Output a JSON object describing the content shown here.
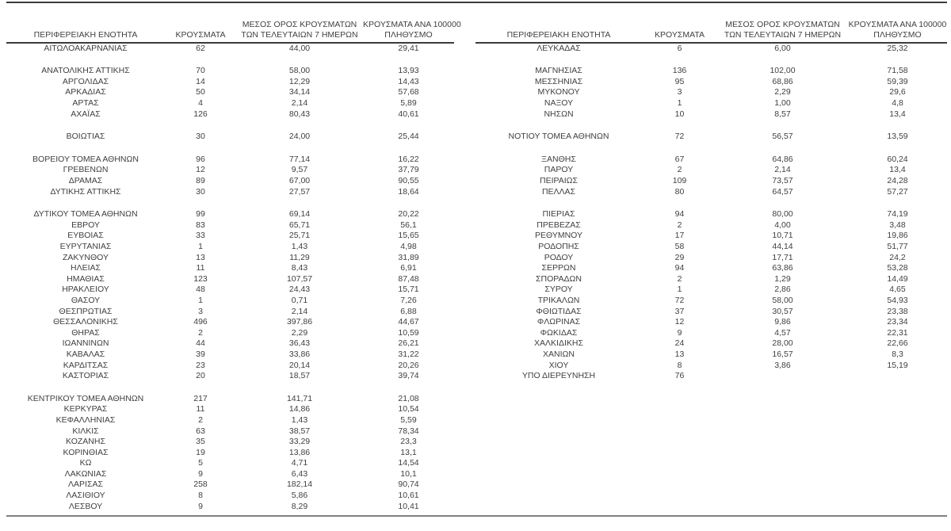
{
  "colors": {
    "text": "#3f3f3f",
    "line-dark": "#3c3c3c",
    "line-light": "#808080",
    "bg": "#ffffff"
  },
  "table": {
    "columns": [
      {
        "line1": "ΠΕΡΙΦΕΡΕΙΑΚΗ ΕΝΟΤΗΤΑ",
        "line2": ""
      },
      {
        "line1": "ΚΡΟΥΣΜΑΤΑ",
        "line2": ""
      },
      {
        "line1": "ΜΕΣΟΣ ΟΡΟΣ ΚΡΟΥΣΜΑΤΩΝ",
        "line2": "ΤΩΝ ΤΕΛΕΥΤΑΙΩΝ 7 ΗΜΕΡΩΝ"
      },
      {
        "line1": "ΚΡΟΥΣΜΑΤΑ ΑΝΑ 100000",
        "line2": "ΠΛΗΘΥΣΜΟ"
      }
    ],
    "left_rows": [
      [
        "ΑΙΤΩΛΟΑΚΑΡΝΑΝΙΑΣ",
        "62",
        "44,00",
        "29,41"
      ],
      null,
      [
        "ΑΝΑΤΟΛΙΚΗΣ ΑΤΤΙΚΗΣ",
        "70",
        "58,00",
        "13,93"
      ],
      [
        "ΑΡΓΟΛΙΔΑΣ",
        "14",
        "12,29",
        "14,43"
      ],
      [
        "ΑΡΚΑΔΙΑΣ",
        "50",
        "34,14",
        "57,68"
      ],
      [
        "ΑΡΤΑΣ",
        "4",
        "2,14",
        "5,89"
      ],
      [
        "ΑΧΑΪΑΣ",
        "126",
        "80,43",
        "40,61"
      ],
      null,
      [
        "ΒΟΙΩΤΙΑΣ",
        "30",
        "24,00",
        "25,44"
      ],
      null,
      [
        "ΒΟΡΕΙΟΥ ΤΟΜΕΑ ΑΘΗΝΩΝ",
        "96",
        "77,14",
        "16,22"
      ],
      [
        "ΓΡΕΒΕΝΩΝ",
        "12",
        "9,57",
        "37,79"
      ],
      [
        "ΔΡΑΜΑΣ",
        "89",
        "67,00",
        "90,55"
      ],
      [
        "ΔΥΤΙΚΗΣ ΑΤΤΙΚΗΣ",
        "30",
        "27,57",
        "18,64"
      ],
      null,
      [
        "ΔΥΤΙΚΟΥ ΤΟΜΕΑ ΑΘΗΝΩΝ",
        "99",
        "69,14",
        "20,22"
      ],
      [
        "ΕΒΡΟΥ",
        "83",
        "65,71",
        "56,1"
      ],
      [
        "ΕΥΒΟΙΑΣ",
        "33",
        "25,71",
        "15,65"
      ],
      [
        "ΕΥΡΥΤΑΝΙΑΣ",
        "1",
        "1,43",
        "4,98"
      ],
      [
        "ΖΑΚΥΝΘΟΥ",
        "13",
        "11,29",
        "31,89"
      ],
      [
        "ΗΛΕΙΑΣ",
        "11",
        "8,43",
        "6,91"
      ],
      [
        "ΗΜΑΘΙΑΣ",
        "123",
        "107,57",
        "87,48"
      ],
      [
        "ΗΡΑΚΛΕΙΟΥ",
        "48",
        "24,43",
        "15,71"
      ],
      [
        "ΘΑΣΟΥ",
        "1",
        "0,71",
        "7,26"
      ],
      [
        "ΘΕΣΠΡΩΤΙΑΣ",
        "3",
        "2,14",
        "6,88"
      ],
      [
        "ΘΕΣΣΑΛΟΝΙΚΗΣ",
        "496",
        "397,86",
        "44,67"
      ],
      [
        "ΘΗΡΑΣ",
        "2",
        "2,29",
        "10,59"
      ],
      [
        "ΙΩΑΝΝΙΝΩΝ",
        "44",
        "36,43",
        "26,21"
      ],
      [
        "ΚΑΒΑΛΑΣ",
        "39",
        "33,86",
        "31,22"
      ],
      [
        "ΚΑΡΔΙΤΣΑΣ",
        "23",
        "20,14",
        "20,26"
      ],
      [
        "ΚΑΣΤΟΡΙΑΣ",
        "20",
        "18,57",
        "39,74"
      ],
      null,
      [
        "ΚΕΝΤΡΙΚΟΥ ΤΟΜΕΑ ΑΘΗΝΩΝ",
        "217",
        "141,71",
        "21,08"
      ],
      [
        "ΚΕΡΚΥΡΑΣ",
        "11",
        "14,86",
        "10,54"
      ],
      [
        "ΚΕΦΑΛΛΗΝΙΑΣ",
        "2",
        "1,43",
        "5,59"
      ],
      [
        "ΚΙΛΚΙΣ",
        "63",
        "38,57",
        "78,34"
      ],
      [
        "ΚΟΖΑΝΗΣ",
        "35",
        "33,29",
        "23,3"
      ],
      [
        "ΚΟΡΙΝΘΙΑΣ",
        "19",
        "13,86",
        "13,1"
      ],
      [
        "ΚΩ",
        "5",
        "4,71",
        "14,54"
      ],
      [
        "ΛΑΚΩΝΙΑΣ",
        "9",
        "6,43",
        "10,1"
      ],
      [
        "ΛΑΡΙΣΑΣ",
        "258",
        "182,14",
        "90,74"
      ],
      [
        "ΛΑΣΙΘΙΟΥ",
        "8",
        "5,86",
        "10,61"
      ],
      [
        "ΛΕΣΒΟΥ",
        "9",
        "8,29",
        "10,41"
      ]
    ],
    "right_rows": [
      [
        "ΛΕΥΚΑΔΑΣ",
        "6",
        "6,00",
        "25,32"
      ],
      null,
      [
        "ΜΑΓΝΗΣΙΑΣ",
        "136",
        "102,00",
        "71,58"
      ],
      [
        "ΜΕΣΣΗΝΙΑΣ",
        "95",
        "68,86",
        "59,39"
      ],
      [
        "ΜΥΚΟΝΟΥ",
        "3",
        "2,29",
        "29,6"
      ],
      [
        "ΝΑΞΟΥ",
        "1",
        "1,00",
        "4,8"
      ],
      [
        "ΝΗΣΩΝ",
        "10",
        "8,57",
        "13,4"
      ],
      null,
      [
        "ΝΟΤΙΟΥ ΤΟΜΕΑ ΑΘΗΝΩΝ",
        "72",
        "56,57",
        "13,59"
      ],
      null,
      [
        "ΞΑΝΘΗΣ",
        "67",
        "64,86",
        "60,24"
      ],
      [
        "ΠΑΡΟΥ",
        "2",
        "2,14",
        "13,4"
      ],
      [
        "ΠΕΙΡΑΙΩΣ",
        "109",
        "73,57",
        "24,28"
      ],
      [
        "ΠΕΛΛΑΣ",
        "80",
        "64,57",
        "57,27"
      ],
      null,
      [
        "ΠΙΕΡΙΑΣ",
        "94",
        "80,00",
        "74,19"
      ],
      [
        "ΠΡΕΒΕΖΑΣ",
        "2",
        "4,00",
        "3,48"
      ],
      [
        "ΡΕΘΥΜΝΟΥ",
        "17",
        "10,71",
        "19,86"
      ],
      [
        "ΡΟΔΟΠΗΣ",
        "58",
        "44,14",
        "51,77"
      ],
      [
        "ΡΟΔΟΥ",
        "29",
        "17,71",
        "24,2"
      ],
      [
        "ΣΕΡΡΩΝ",
        "94",
        "63,86",
        "53,28"
      ],
      [
        "ΣΠΟΡΑΔΩΝ",
        "2",
        "1,29",
        "14,49"
      ],
      [
        "ΣΥΡΟΥ",
        "1",
        "2,86",
        "4,65"
      ],
      [
        "ΤΡΙΚΑΛΩΝ",
        "72",
        "58,00",
        "54,93"
      ],
      [
        "ΦΘΙΩΤΙΔΑΣ",
        "37",
        "30,57",
        "23,38"
      ],
      [
        "ΦΛΩΡΙΝΑΣ",
        "12",
        "9,86",
        "23,34"
      ],
      [
        "ΦΩΚΙΔΑΣ",
        "9",
        "4,57",
        "22,31"
      ],
      [
        "ΧΑΛΚΙΔΙΚΗΣ",
        "24",
        "28,00",
        "22,66"
      ],
      [
        "ΧΑΝΙΩΝ",
        "13",
        "16,57",
        "8,3"
      ],
      [
        "ΧΙΟΥ",
        "8",
        "3,86",
        "15,19"
      ],
      [
        "ΥΠΟ ΔΙΕΡΕΥΝΗΣΗ",
        "76",
        "",
        ""
      ]
    ],
    "cell_names": [
      "region-cell",
      "cases-cell",
      "avg7-cell",
      "per100k-cell"
    ]
  }
}
